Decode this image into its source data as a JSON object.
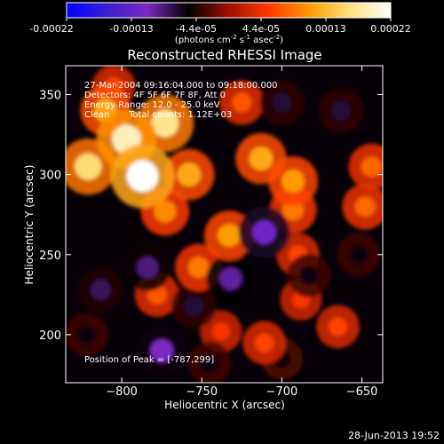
{
  "colorbar": {
    "tick_labels": [
      "-0.00022",
      "-0.00013",
      "-4.4e-05",
      "4.4e-05",
      "0.00013",
      "0.00022"
    ],
    "units_main": "(photons cm",
    "units_sup1": "-2",
    "units_mid1": " s",
    "units_sup2": "-1",
    "units_mid2": " asec",
    "units_sup3": "-2",
    "units_end": ")",
    "range": [
      -0.00022,
      0.00022
    ]
  },
  "info": {
    "time_range": "27-Mar-2004 09:16:04.000 to 09:18:00.000",
    "detectors": "Detectors: 4F 5F 6F 7F 8F, Att 0",
    "energy": "Energy Range: 12.0 - 25.0 keV",
    "algorithm": "Clean",
    "counts": "Total counts: 1.12E+03",
    "peak": "Position of Peak = [-787,299]"
  },
  "footer": {
    "timestamp": "28-Jun-2013 19:52"
  },
  "colors": {
    "colorbar_stops": [
      "#0000ff",
      "#3a1fd0",
      "#7a2ac0",
      "#000000",
      "#a01000",
      "#ff3a00",
      "#ff9a00",
      "#ffe080",
      "#ffffff"
    ]
  },
  "chart_data": {
    "type": "heatmap",
    "title": "Reconstructed RHESSI Image",
    "xlabel": "Heliocentric X (arcsec)",
    "ylabel": "Heliocentric Y (arcsec)",
    "xlim": [
      -835,
      -637
    ],
    "ylim": [
      170,
      368
    ],
    "x_ticks": [
      -800,
      -750,
      -700,
      -650
    ],
    "y_ticks": [
      200,
      250,
      300,
      350
    ],
    "x_tick_labels": [
      "−800",
      "−750",
      "−700",
      "−650"
    ],
    "y_tick_labels": [
      "200",
      "250",
      "300",
      "350"
    ],
    "value_range": [
      -0.00022,
      0.00022
    ],
    "peak_position": [
      -787,
      299
    ],
    "features": [
      {
        "x": -787,
        "y": 299,
        "value": 0.00022
      },
      {
        "x": -797,
        "y": 322,
        "value": 0.00019
      },
      {
        "x": -773,
        "y": 332,
        "value": 0.00017
      },
      {
        "x": -821,
        "y": 305,
        "value": 0.00016
      },
      {
        "x": -758,
        "y": 300,
        "value": 0.00012
      },
      {
        "x": -773,
        "y": 277,
        "value": 0.0001
      },
      {
        "x": -810,
        "y": 340,
        "value": 0.00012
      },
      {
        "x": -713,
        "y": 310,
        "value": 0.00012
      },
      {
        "x": -693,
        "y": 296,
        "value": 0.00011
      },
      {
        "x": -733,
        "y": 262,
        "value": 0.00011
      },
      {
        "x": -752,
        "y": 242,
        "value": 9e-05
      },
      {
        "x": -693,
        "y": 278,
        "value": 9e-05
      },
      {
        "x": -648,
        "y": 280,
        "value": 8e-05
      },
      {
        "x": -644,
        "y": 305,
        "value": 8e-05
      },
      {
        "x": -725,
        "y": 345,
        "value": 7e-05
      },
      {
        "x": -690,
        "y": 250,
        "value": 6e-05
      },
      {
        "x": -778,
        "y": 225,
        "value": 7e-05
      },
      {
        "x": -711,
        "y": 195,
        "value": 6e-05
      },
      {
        "x": -665,
        "y": 205,
        "value": 6e-05
      },
      {
        "x": -738,
        "y": 202,
        "value": 5e-05
      },
      {
        "x": -688,
        "y": 222,
        "value": 5e-05
      },
      {
        "x": -805,
        "y": 355,
        "value": 6e-05
      },
      {
        "x": -711,
        "y": 264,
        "value": -0.00012
      },
      {
        "x": -732,
        "y": 235,
        "value": -0.0001
      },
      {
        "x": -775,
        "y": 190,
        "value": -0.00011
      },
      {
        "x": -813,
        "y": 228,
        "value": -8e-05
      },
      {
        "x": -784,
        "y": 242,
        "value": -9e-05
      },
      {
        "x": -755,
        "y": 218,
        "value": -7e-05
      },
      {
        "x": -683,
        "y": 237,
        "value": -6e-05
      },
      {
        "x": -663,
        "y": 340,
        "value": -7e-05
      },
      {
        "x": -652,
        "y": 250,
        "value": -6e-05
      },
      {
        "x": -700,
        "y": 345,
        "value": -7e-05
      },
      {
        "x": -745,
        "y": 182,
        "value": -6e-05
      },
      {
        "x": -822,
        "y": 200,
        "value": -6e-05
      },
      {
        "x": -700,
        "y": 185,
        "value": -5e-05
      }
    ]
  }
}
